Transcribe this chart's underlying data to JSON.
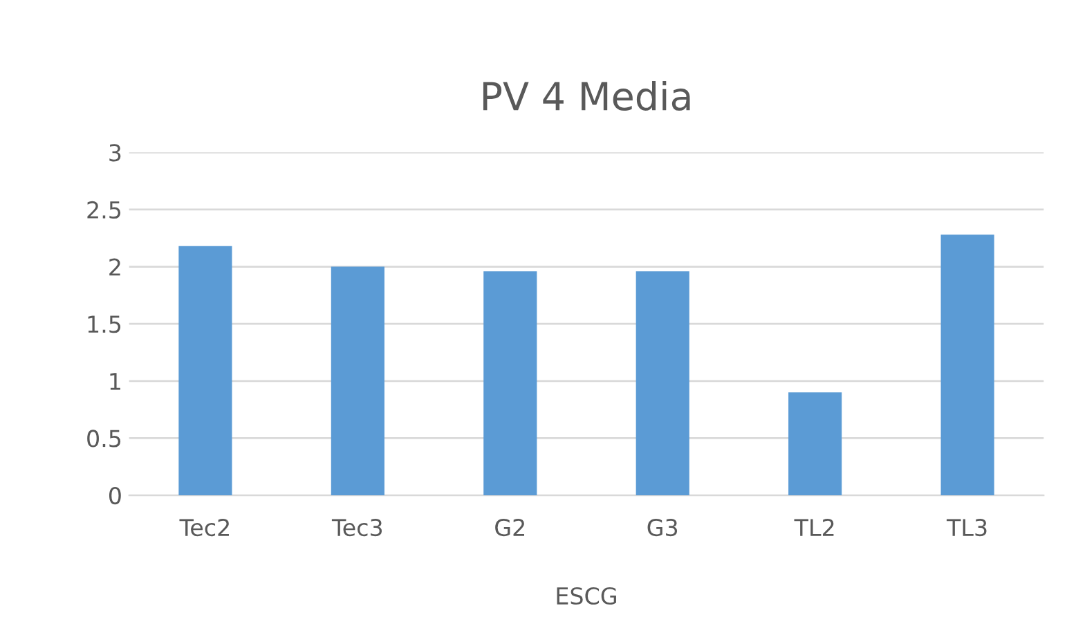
{
  "chart_data": {
    "type": "bar",
    "title": "PV 4 Media",
    "xlabel": "ESCG",
    "categories": [
      "Tec2",
      "Tec3",
      "G2",
      "G3",
      "TL2",
      "TL3"
    ],
    "values": [
      2.18,
      2.0,
      1.96,
      1.96,
      0.9,
      2.28
    ],
    "color": "#5b9bd5",
    "ylim": [
      0,
      3
    ],
    "yticks": [
      0,
      0.5,
      1,
      1.5,
      2,
      2.5,
      3
    ],
    "grid": "y"
  }
}
